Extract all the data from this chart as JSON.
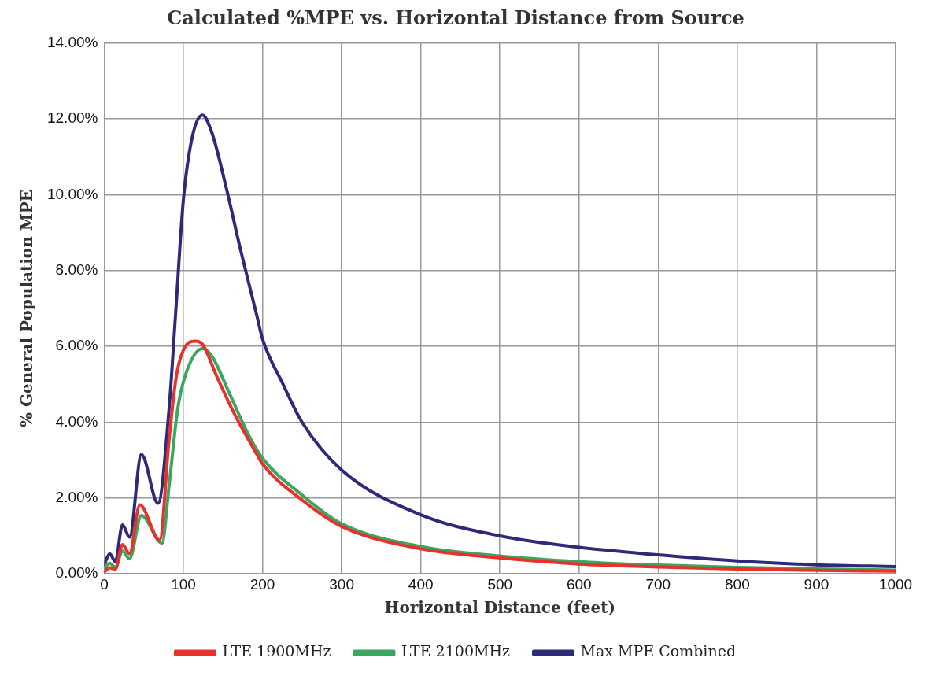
{
  "chart_data": {
    "type": "line",
    "title": "Calculated %MPE vs. Horizontal Distance from Source",
    "xlabel": "Horizontal Distance (feet)",
    "ylabel": "% General Population MPE",
    "xlim": [
      0,
      1000
    ],
    "xticks": [
      0,
      100,
      200,
      300,
      400,
      500,
      600,
      700,
      800,
      900,
      1000
    ],
    "ylim": [
      0,
      14
    ],
    "yticks": [
      {
        "value": 0,
        "label": "0.00%"
      },
      {
        "value": 2,
        "label": "2.00%"
      },
      {
        "value": 4,
        "label": "4.00%"
      },
      {
        "value": 6,
        "label": "6.00%"
      },
      {
        "value": 8,
        "label": "8.00%"
      },
      {
        "value": 10,
        "label": "10.00%"
      },
      {
        "value": 12,
        "label": "12.00%"
      },
      {
        "value": 14,
        "label": "14.00%"
      }
    ],
    "grid": true,
    "legend": "bottom",
    "marker": "none",
    "line_style": "solid",
    "series": [
      {
        "name": "LTE 1900MHz",
        "color": "#e8312a",
        "x": [
          0,
          7,
          14,
          23,
          32,
          45,
          70,
          82,
          91,
          100,
          115,
          124,
          143,
          165,
          193,
          200,
          250,
          300,
          400,
          500,
          600,
          700,
          800,
          900,
          1000
        ],
        "values": [
          0.05,
          0.16,
          0.12,
          0.77,
          0.53,
          1.82,
          0.89,
          3.56,
          5.2,
          5.9,
          6.14,
          6.06,
          5.17,
          4.2,
          3.15,
          2.9,
          1.95,
          1.25,
          0.66,
          0.42,
          0.26,
          0.18,
          0.13,
          0.09,
          0.07
        ]
      },
      {
        "name": "LTE 2100MHz",
        "color": "#3aa65e",
        "x": [
          0,
          7,
          14,
          23,
          32,
          47,
          73,
          82,
          93,
          104,
          124,
          136,
          158,
          183,
          200,
          250,
          300,
          400,
          500,
          600,
          700,
          800,
          900,
          1000
        ],
        "values": [
          0.15,
          0.28,
          0.16,
          0.6,
          0.4,
          1.54,
          0.81,
          2.34,
          4.37,
          5.33,
          5.94,
          5.74,
          4.77,
          3.64,
          3.05,
          2.08,
          1.32,
          0.72,
          0.47,
          0.32,
          0.23,
          0.17,
          0.13,
          0.1
        ]
      },
      {
        "name": "Max MPE Combined",
        "color": "#2e2a7a",
        "x": [
          0,
          7,
          14,
          23,
          32,
          47,
          68,
          82,
          90,
          100,
          111,
          124,
          136,
          154,
          172,
          193,
          200,
          226,
          250,
          300,
          400,
          500,
          600,
          700,
          800,
          900,
          1000
        ],
        "values": [
          0.25,
          0.53,
          0.32,
          1.29,
          0.97,
          3.15,
          1.86,
          4.37,
          6.8,
          9.86,
          11.5,
          12.1,
          11.64,
          10.2,
          8.57,
          6.8,
          6.2,
          5.0,
          4.0,
          2.74,
          1.56,
          1.0,
          0.7,
          0.5,
          0.34,
          0.24,
          0.19
        ]
      }
    ]
  }
}
